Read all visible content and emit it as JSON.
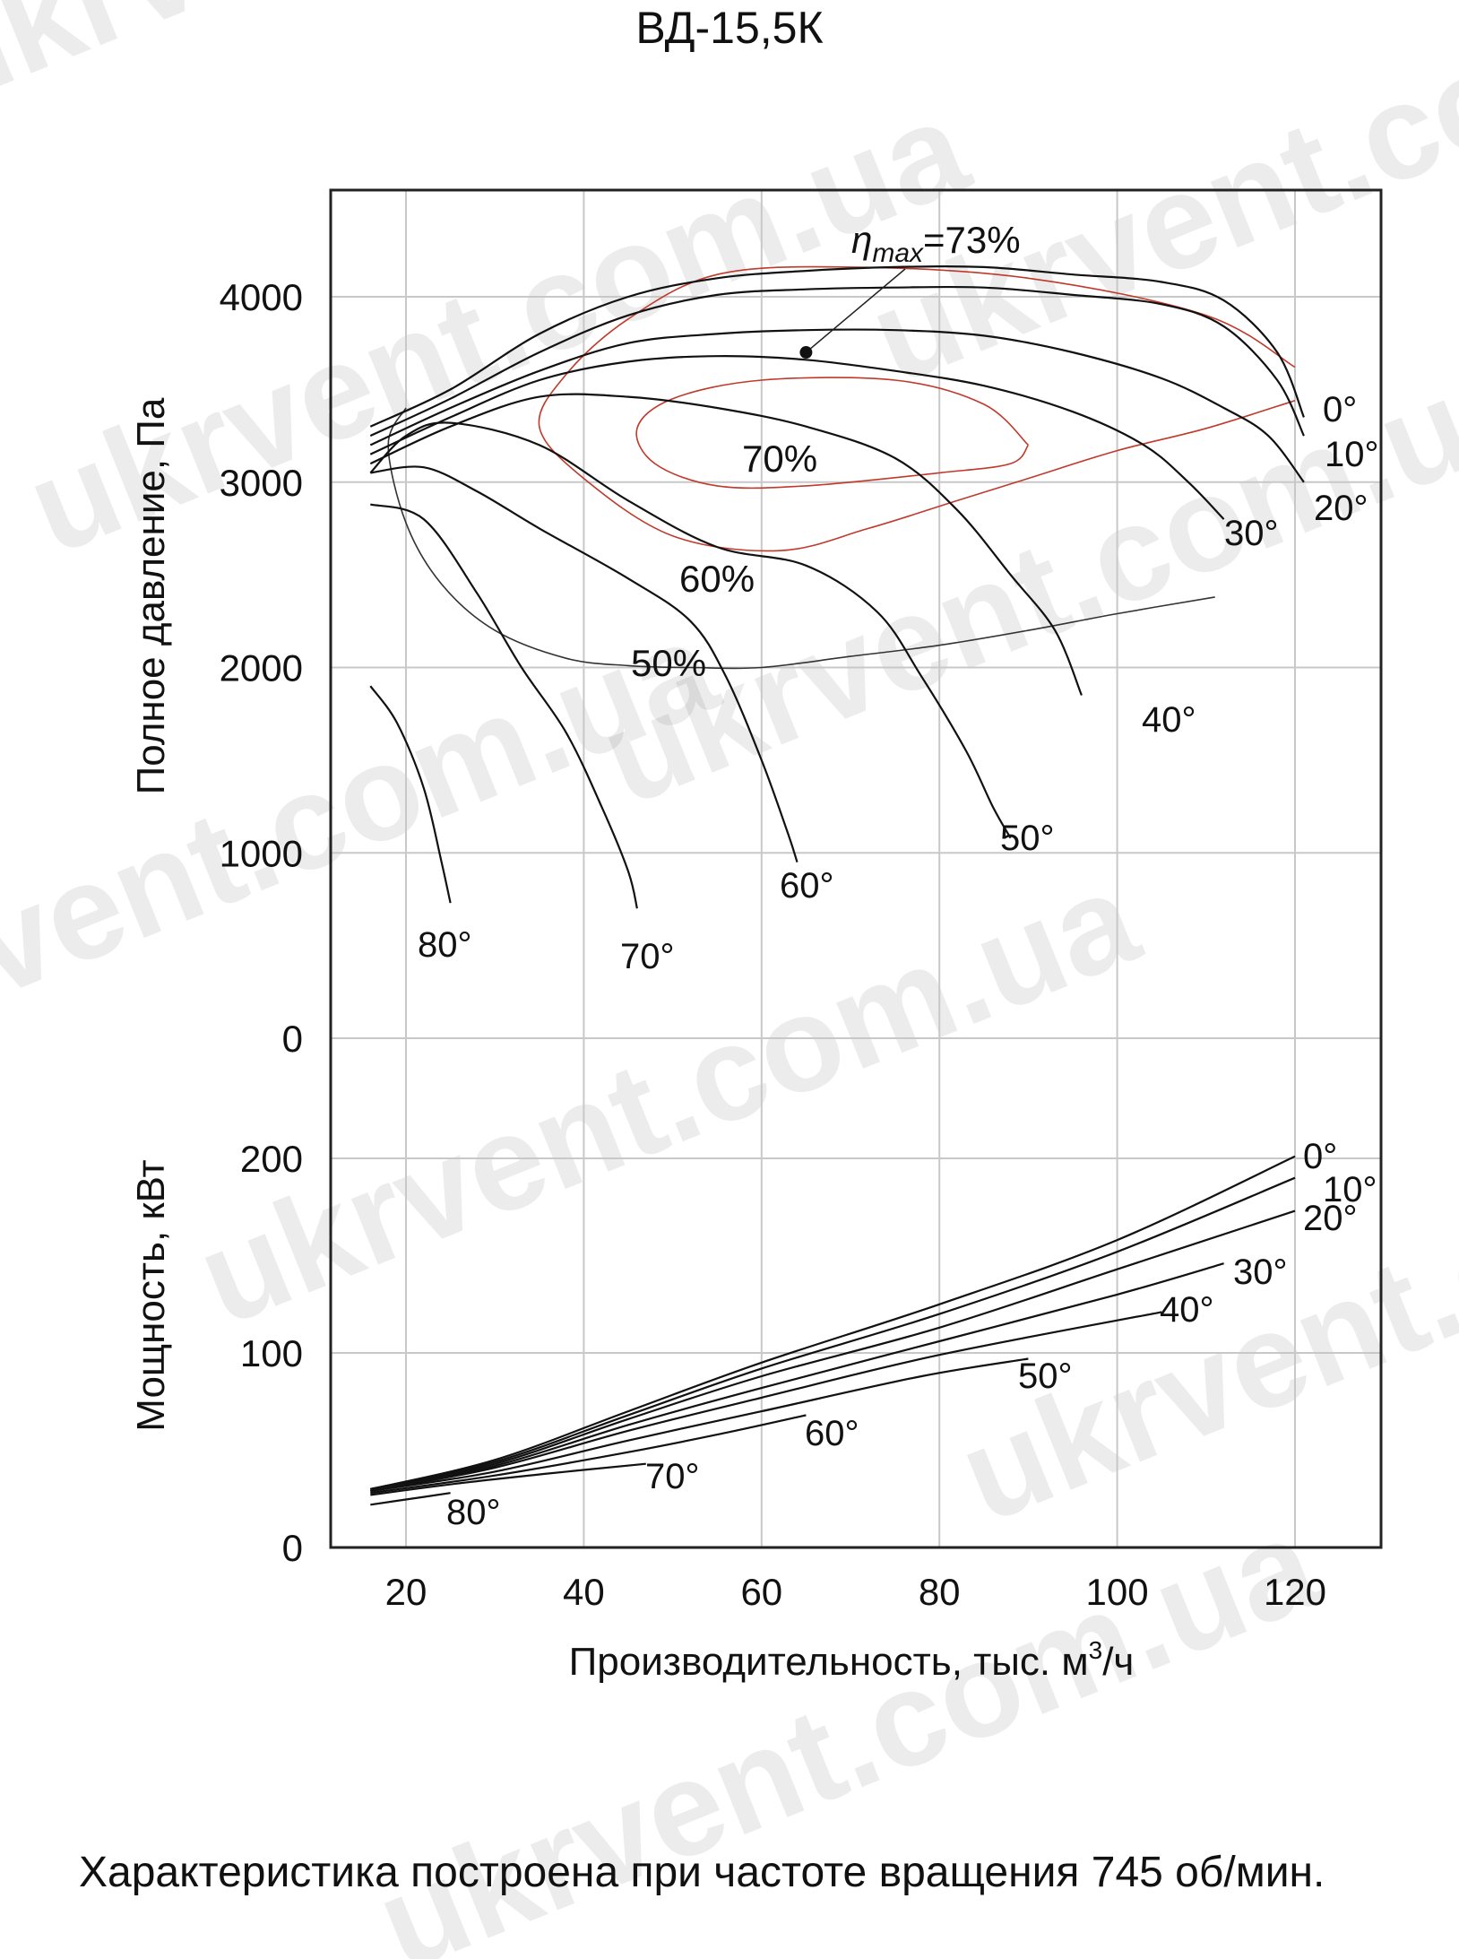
{
  "title": "ВД-15,5К",
  "caption": "Характеристика построена при частоте вращения 745 об/мин.",
  "watermark": "ukrvent.com.ua",
  "chart_data": {
    "type": "line",
    "title": "ВД-15,5К",
    "xlabel_prefix": "Производительность, тыс. м",
    "xlabel_sup": "3",
    "xlabel_suffix": "/ч",
    "xlim": [
      11,
      130
    ],
    "xticks": [
      "20",
      "40",
      "60",
      "80",
      "100",
      "120"
    ],
    "xtick_values": [
      20,
      40,
      60,
      80,
      100,
      120
    ],
    "grid": true,
    "pressure": {
      "ylabel": "Полное давление, Па",
      "ylim": [
        0,
        4600
      ],
      "yticks": [
        "0",
        "1000",
        "2000",
        "3000",
        "4000"
      ],
      "ytick_values": [
        0,
        1000,
        2000,
        3000,
        4000
      ],
      "series": [
        {
          "name": "0°",
          "points": [
            [
              16,
              3300
            ],
            [
              25,
              3500
            ],
            [
              35,
              3800
            ],
            [
              45,
              4000
            ],
            [
              55,
              4100
            ],
            [
              65,
              4140
            ],
            [
              75,
              4160
            ],
            [
              85,
              4160
            ],
            [
              95,
              4120
            ],
            [
              105,
              4080
            ],
            [
              112,
              3980
            ],
            [
              118,
              3700
            ],
            [
              121,
              3350
            ]
          ]
        },
        {
          "name": "10°",
          "points": [
            [
              16,
              3250
            ],
            [
              25,
              3450
            ],
            [
              35,
              3700
            ],
            [
              45,
              3900
            ],
            [
              55,
              4010
            ],
            [
              65,
              4040
            ],
            [
              75,
              4050
            ],
            [
              85,
              4050
            ],
            [
              95,
              4010
            ],
            [
              105,
              3960
            ],
            [
              112,
              3840
            ],
            [
              118,
              3550
            ],
            [
              121,
              3250
            ]
          ]
        },
        {
          "name": "20°",
          "points": [
            [
              16,
              3200
            ],
            [
              25,
              3400
            ],
            [
              35,
              3600
            ],
            [
              45,
              3750
            ],
            [
              55,
              3800
            ],
            [
              65,
              3820
            ],
            [
              75,
              3820
            ],
            [
              85,
              3790
            ],
            [
              95,
              3700
            ],
            [
              105,
              3560
            ],
            [
              112,
              3400
            ],
            [
              117,
              3250
            ],
            [
              121,
              3000
            ]
          ]
        },
        {
          "name": "30°",
          "points": [
            [
              16,
              3150
            ],
            [
              25,
              3350
            ],
            [
              35,
              3550
            ],
            [
              45,
              3650
            ],
            [
              55,
              3680
            ],
            [
              65,
              3660
            ],
            [
              75,
              3600
            ],
            [
              85,
              3520
            ],
            [
              95,
              3380
            ],
            [
              103,
              3200
            ],
            [
              108,
              3000
            ],
            [
              112,
              2800
            ]
          ]
        },
        {
          "name": "40°",
          "points": [
            [
              16,
              3100
            ],
            [
              25,
              3300
            ],
            [
              35,
              3460
            ],
            [
              45,
              3460
            ],
            [
              55,
              3400
            ],
            [
              65,
              3300
            ],
            [
              75,
              3130
            ],
            [
              82,
              2850
            ],
            [
              88,
              2500
            ],
            [
              93,
              2200
            ],
            [
              96,
              1850
            ]
          ]
        },
        {
          "name": "50°",
          "points": [
            [
              16,
              3050
            ],
            [
              20,
              3250
            ],
            [
              25,
              3320
            ],
            [
              35,
              3200
            ],
            [
              45,
              2900
            ],
            [
              55,
              2650
            ],
            [
              65,
              2550
            ],
            [
              73,
              2300
            ],
            [
              78,
              1950
            ],
            [
              83,
              1550
            ],
            [
              86,
              1250
            ],
            [
              88,
              1080
            ]
          ]
        },
        {
          "name": "60°",
          "points": [
            [
              16,
              3050
            ],
            [
              22,
              3080
            ],
            [
              28,
              2950
            ],
            [
              35,
              2750
            ],
            [
              45,
              2480
            ],
            [
              52,
              2250
            ],
            [
              56,
              1950
            ],
            [
              60,
              1500
            ],
            [
              63,
              1100
            ],
            [
              64,
              950
            ]
          ]
        },
        {
          "name": "70°",
          "points": [
            [
              16,
              2880
            ],
            [
              22,
              2800
            ],
            [
              28,
              2400
            ],
            [
              33,
              2000
            ],
            [
              38,
              1650
            ],
            [
              42,
              1250
            ],
            [
              45,
              900
            ],
            [
              46,
              700
            ]
          ]
        },
        {
          "name": "80°",
          "points": [
            [
              16,
              1900
            ],
            [
              19,
              1700
            ],
            [
              22,
              1350
            ],
            [
              24,
              950
            ],
            [
              25,
              730
            ]
          ]
        }
      ],
      "efficiency_contours": [
        {
          "name": "70%",
          "points": [
            [
              120,
              3440
            ],
            [
              110,
              3290
            ],
            [
              100,
              3170
            ],
            [
              90,
              3020
            ],
            [
              82,
              2900
            ],
            [
              72,
              2750
            ],
            [
              62,
              2630
            ],
            [
              50,
              2710
            ],
            [
              40,
              3020
            ],
            [
              35,
              3300
            ],
            [
              38,
              3580
            ],
            [
              45,
              3880
            ],
            [
              55,
              4120
            ],
            [
              70,
              4160
            ],
            [
              90,
              4100
            ],
            [
              110,
              3900
            ],
            [
              120,
              3620
            ]
          ]
        },
        {
          "name": "60%",
          "points": [
            [
              90,
              3200
            ],
            [
              85,
              3420
            ],
            [
              75,
              3550
            ],
            [
              60,
              3550
            ],
            [
              50,
              3450
            ],
            [
              46,
              3290
            ],
            [
              48,
              3100
            ],
            [
              55,
              2980
            ],
            [
              65,
              2980
            ],
            [
              80,
              3050
            ],
            [
              88,
              3100
            ],
            [
              90,
              3200
            ]
          ]
        },
        {
          "name": "50%",
          "points": [
            [
              111,
              2380
            ],
            [
              100,
              2290
            ],
            [
              90,
              2200
            ],
            [
              80,
              2120
            ],
            [
              70,
              2060
            ],
            [
              60,
              2000
            ],
            [
              52,
              2000
            ],
            [
              45,
              2010
            ],
            [
              38,
              2050
            ],
            [
              30,
              2200
            ],
            [
              24,
              2450
            ],
            [
              20,
              2780
            ],
            [
              18,
              3200
            ],
            [
              20,
              3400
            ]
          ]
        }
      ],
      "efficiency_labels": [
        "70%",
        "60%",
        "50%"
      ],
      "eta_max_symbol": "η",
      "eta_max_subscript": "max",
      "eta_max_value": "=73%",
      "eta_max_point": [
        65,
        3700
      ]
    },
    "power": {
      "ylabel": "Мощность, кВт",
      "ylim": [
        0,
        210
      ],
      "yticks": [
        "0",
        "100",
        "200"
      ],
      "ytick_values": [
        0,
        100,
        200
      ],
      "series": [
        {
          "name": "0°",
          "points": [
            [
              16,
              30
            ],
            [
              30,
              45
            ],
            [
              45,
              70
            ],
            [
              60,
              95
            ],
            [
              80,
              125
            ],
            [
              100,
              158
            ],
            [
              120,
              201
            ]
          ]
        },
        {
          "name": "10°",
          "points": [
            [
              16,
              30
            ],
            [
              30,
              44
            ],
            [
              45,
              68
            ],
            [
              60,
              92
            ],
            [
              80,
              120
            ],
            [
              100,
              152
            ],
            [
              120,
              190
            ]
          ]
        },
        {
          "name": "20°",
          "points": [
            [
              16,
              30
            ],
            [
              30,
              43
            ],
            [
              45,
              66
            ],
            [
              60,
              88
            ],
            [
              80,
              113
            ],
            [
              100,
              143
            ],
            [
              120,
              173
            ]
          ]
        },
        {
          "name": "30°",
          "points": [
            [
              16,
              30
            ],
            [
              30,
              42
            ],
            [
              45,
              63
            ],
            [
              60,
              82
            ],
            [
              80,
              106
            ],
            [
              100,
              130
            ],
            [
              112,
              146
            ]
          ]
        },
        {
          "name": "40°",
          "points": [
            [
              16,
              29
            ],
            [
              30,
              41
            ],
            [
              45,
              60
            ],
            [
              60,
              77
            ],
            [
              80,
              99
            ],
            [
              105,
              121
            ]
          ]
        },
        {
          "name": "50°",
          "points": [
            [
              16,
              29
            ],
            [
              30,
              39
            ],
            [
              45,
              55
            ],
            [
              60,
              70
            ],
            [
              78,
              88
            ],
            [
              90,
              97
            ]
          ]
        },
        {
          "name": "60°",
          "points": [
            [
              16,
              28
            ],
            [
              30,
              37
            ],
            [
              45,
              49
            ],
            [
              55,
              58
            ],
            [
              65,
              68
            ]
          ]
        },
        {
          "name": "70°",
          "points": [
            [
              16,
              27
            ],
            [
              26,
              33
            ],
            [
              36,
              38
            ],
            [
              47,
              43
            ]
          ]
        },
        {
          "name": "80°",
          "points": [
            [
              16,
              22
            ],
            [
              22,
              26
            ],
            [
              25,
              28
            ]
          ]
        }
      ]
    }
  }
}
